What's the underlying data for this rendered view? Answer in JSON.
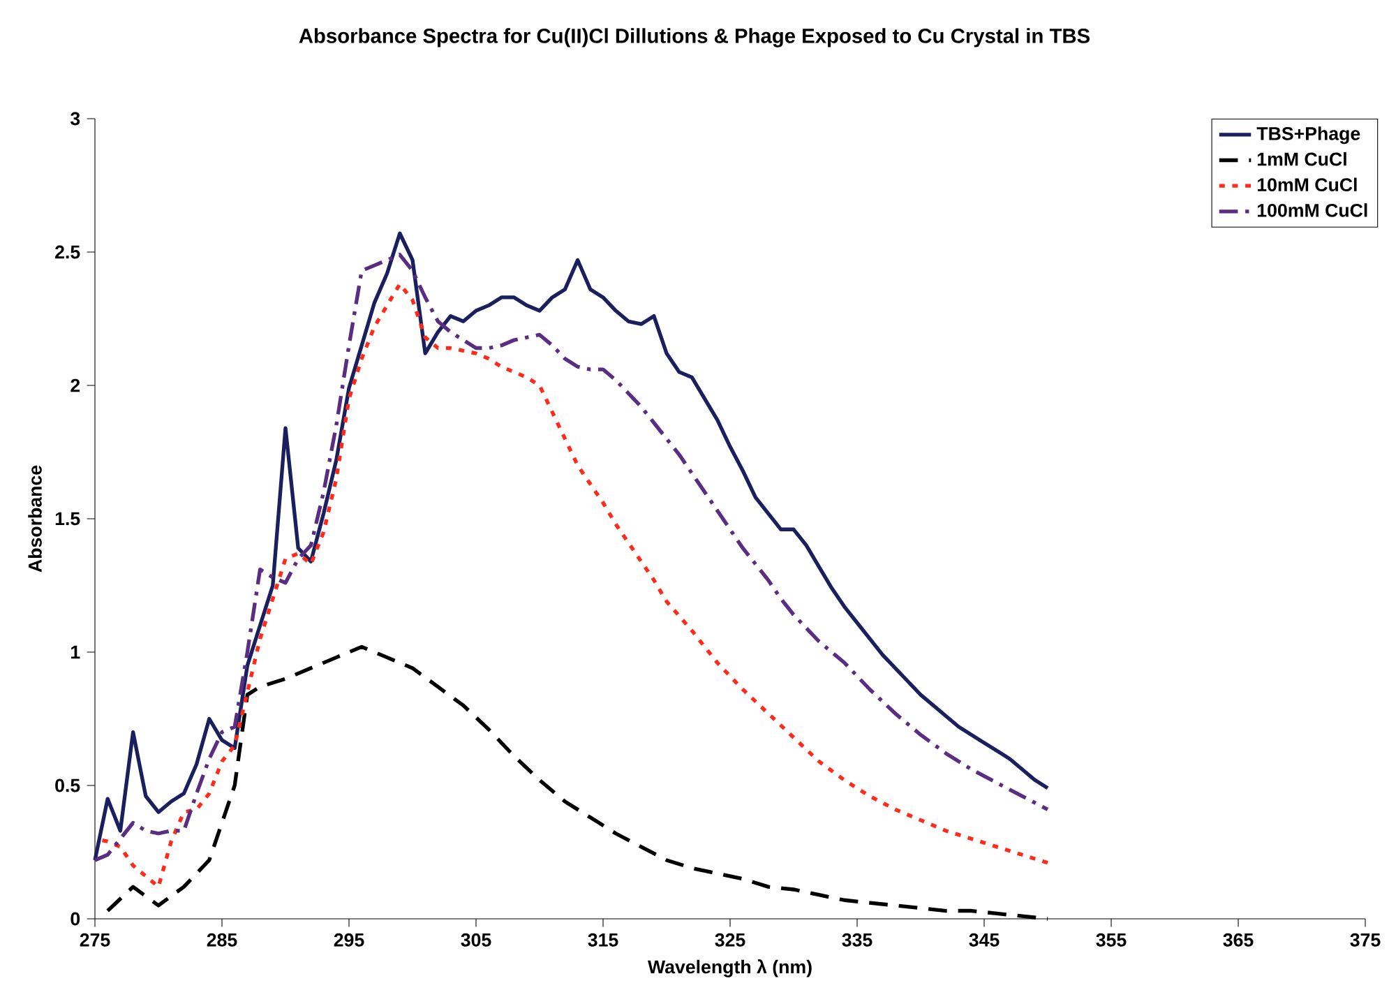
{
  "chart_data": {
    "type": "line",
    "title": "Absorbance Spectra for Cu(II)Cl Dillutions & Phage Exposed to Cu Crystal in TBS",
    "xlabel": "Wavelength λ (nm)",
    "ylabel": "Absorbance",
    "xlim": [
      275,
      375
    ],
    "xticks": [
      275,
      285,
      295,
      305,
      315,
      325,
      335,
      345,
      355,
      365,
      375
    ],
    "ylim": [
      0,
      3
    ],
    "yticks": [
      0,
      0.5,
      1,
      1.5,
      2,
      2.5,
      3
    ],
    "grid": false,
    "legend": "top right",
    "series": [
      {
        "name": "TBS+Phage",
        "color": "#1a1f5e",
        "line_style": "solid",
        "x": [
          275,
          276,
          277,
          278,
          279,
          280,
          281,
          282,
          283,
          284,
          285,
          286,
          287,
          288,
          289,
          290,
          291,
          292,
          293,
          294,
          295,
          296,
          297,
          298,
          299,
          300,
          301,
          302,
          303,
          304,
          305,
          306,
          307,
          308,
          309,
          310,
          311,
          312,
          313,
          314,
          315,
          316,
          317,
          318,
          319,
          320,
          321,
          322,
          323,
          324,
          325,
          326,
          327,
          328,
          329,
          330,
          331,
          332,
          333,
          334,
          335,
          336,
          337,
          338,
          339,
          340,
          341,
          342,
          343,
          344,
          345,
          346,
          347,
          348,
          349,
          350
        ],
        "values": [
          0.22,
          0.45,
          0.33,
          0.7,
          0.46,
          0.4,
          0.44,
          0.47,
          0.58,
          0.75,
          0.67,
          0.64,
          0.95,
          1.1,
          1.25,
          1.84,
          1.39,
          1.34,
          1.52,
          1.72,
          1.99,
          2.15,
          2.31,
          2.42,
          2.57,
          2.47,
          2.12,
          2.2,
          2.26,
          2.24,
          2.28,
          2.3,
          2.33,
          2.33,
          2.3,
          2.28,
          2.33,
          2.36,
          2.47,
          2.36,
          2.33,
          2.28,
          2.24,
          2.23,
          2.26,
          2.12,
          2.05,
          2.03,
          1.95,
          1.87,
          1.77,
          1.68,
          1.58,
          1.52,
          1.46,
          1.46,
          1.4,
          1.32,
          1.24,
          1.17,
          1.11,
          1.05,
          0.99,
          0.94,
          0.89,
          0.84,
          0.8,
          0.76,
          0.72,
          0.69,
          0.66,
          0.63,
          0.6,
          0.56,
          0.52,
          0.49
        ]
      },
      {
        "name": "1mM CuCl",
        "color": "#000000",
        "line_style": "dashed",
        "x": [
          276,
          278,
          280,
          282,
          284,
          286,
          287,
          288,
          290,
          292,
          294,
          296,
          298,
          300,
          302,
          304,
          306,
          308,
          310,
          312,
          314,
          316,
          318,
          320,
          322,
          324,
          326,
          328,
          330,
          332,
          334,
          336,
          338,
          340,
          342,
          344,
          346,
          348,
          350
        ],
        "values": [
          0.03,
          0.12,
          0.05,
          0.12,
          0.22,
          0.5,
          0.84,
          0.87,
          0.9,
          0.94,
          0.98,
          1.02,
          0.98,
          0.94,
          0.87,
          0.8,
          0.71,
          0.61,
          0.52,
          0.44,
          0.38,
          0.32,
          0.27,
          0.22,
          0.19,
          0.17,
          0.15,
          0.12,
          0.11,
          0.09,
          0.07,
          0.06,
          0.05,
          0.04,
          0.03,
          0.03,
          0.02,
          0.01,
          0
        ]
      },
      {
        "name": "10mM CuCl",
        "color": "#ff2a1a",
        "line_style": "dotted",
        "x": [
          275,
          276,
          277,
          278,
          279,
          280,
          281,
          282,
          283,
          284,
          285,
          286,
          287,
          288,
          289,
          290,
          291,
          292,
          293,
          294,
          295,
          296,
          297,
          298,
          299,
          300,
          301,
          302,
          303,
          304,
          305,
          306,
          307,
          308,
          309,
          310,
          311,
          312,
          313,
          314,
          315,
          316,
          317,
          318,
          319,
          320,
          322,
          324,
          326,
          328,
          330,
          332,
          334,
          336,
          338,
          340,
          342,
          344,
          346,
          348,
          350
        ],
        "values": [
          0.3,
          0.29,
          0.27,
          0.2,
          0.16,
          0.12,
          0.29,
          0.4,
          0.41,
          0.47,
          0.59,
          0.65,
          0.85,
          1.05,
          1.2,
          1.35,
          1.37,
          1.33,
          1.45,
          1.65,
          1.95,
          2.1,
          2.22,
          2.3,
          2.38,
          2.32,
          2.18,
          2.14,
          2.14,
          2.13,
          2.12,
          2.1,
          2.07,
          2.05,
          2.03,
          2,
          1.9,
          1.8,
          1.7,
          1.63,
          1.56,
          1.48,
          1.41,
          1.34,
          1.27,
          1.19,
          1.08,
          0.96,
          0.86,
          0.77,
          0.68,
          0.59,
          0.52,
          0.46,
          0.41,
          0.37,
          0.33,
          0.3,
          0.27,
          0.24,
          0.21
        ]
      },
      {
        "name": "100mM CuCl",
        "color": "#5a2d82",
        "line_style": "dashdot",
        "x": [
          275,
          276,
          277,
          278,
          279,
          280,
          281,
          282,
          283,
          284,
          285,
          286,
          287,
          288,
          289,
          290,
          291,
          292,
          293,
          294,
          295,
          296,
          297,
          298,
          299,
          300,
          301,
          302,
          303,
          304,
          305,
          306,
          307,
          308,
          309,
          310,
          311,
          312,
          313,
          314,
          315,
          316,
          317,
          318,
          319,
          320,
          321,
          322,
          323,
          324,
          325,
          326,
          327,
          328,
          329,
          330,
          332,
          334,
          336,
          338,
          340,
          342,
          344,
          346,
          348,
          350
        ],
        "values": [
          0.22,
          0.24,
          0.3,
          0.36,
          0.33,
          0.32,
          0.33,
          0.33,
          0.47,
          0.6,
          0.7,
          0.72,
          1,
          1.31,
          1.28,
          1.26,
          1.35,
          1.4,
          1.6,
          1.85,
          2.15,
          2.43,
          2.45,
          2.47,
          2.49,
          2.43,
          2.33,
          2.24,
          2.2,
          2.17,
          2.14,
          2.14,
          2.15,
          2.17,
          2.18,
          2.19,
          2.15,
          2.1,
          2.07,
          2.06,
          2.06,
          2.02,
          1.97,
          1.92,
          1.86,
          1.8,
          1.74,
          1.67,
          1.6,
          1.53,
          1.46,
          1.39,
          1.33,
          1.27,
          1.2,
          1.14,
          1.04,
          0.96,
          0.86,
          0.77,
          0.69,
          0.62,
          0.56,
          0.51,
          0.46,
          0.41
        ]
      }
    ]
  }
}
